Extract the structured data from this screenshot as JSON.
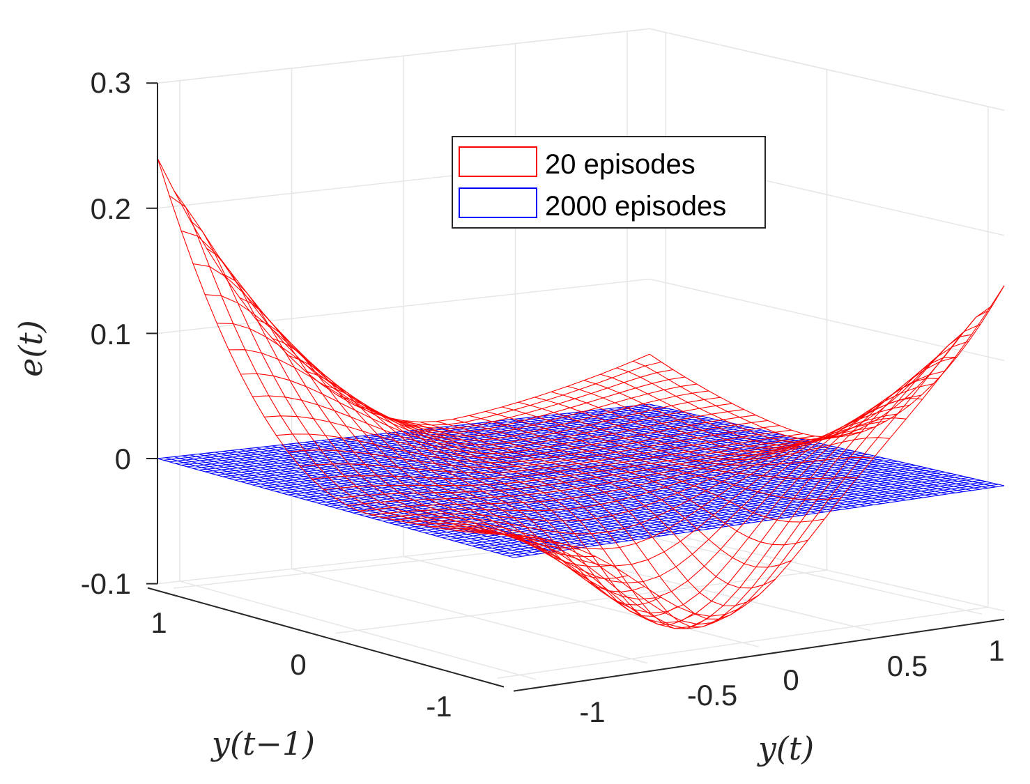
{
  "chart_data": {
    "type": "surface",
    "title": "",
    "xlabel": "y(t)",
    "ylabel": "y(t−1)",
    "zlabel": "e(t)",
    "xlim": [
      -1.1,
      1.1
    ],
    "ylim": [
      -1.1,
      1.1
    ],
    "zlim": [
      -0.1,
      0.3
    ],
    "x_ticks": [
      "-1",
      "-0.5",
      "0",
      "0.5",
      "1"
    ],
    "y_ticks": [
      "1",
      "0",
      "-1"
    ],
    "z_ticks": [
      "0.3",
      "0.2",
      "0.1",
      "0",
      "-0.1"
    ],
    "grid": true,
    "legend_position": "top-center",
    "series": [
      {
        "name": "20 episodes",
        "color": "#ff0000",
        "style": "mesh",
        "grid_lines": 31,
        "description": "curved error surface, large at corners, dips near y(t)=0,y(t-1)=-1",
        "corner_values": {
          "x-1.1_y1.1": 0.24,
          "x1.1_y-1.1": 0.16,
          "x-1.1_y-1.1": 0.02,
          "x1.1_y1.1": 0.04
        },
        "min_value": -0.09
      },
      {
        "name": "2000 episodes",
        "color": "#0000ff",
        "style": "mesh",
        "grid_lines": 61,
        "description": "nearly flat surface close to zero",
        "corner_values": {
          "x-1.1_y1.1": 0.0,
          "x1.1_y-1.1": 0.0,
          "x-1.1_y-1.1": 0.0,
          "x1.1_y1.1": 0.0
        },
        "min_value": 0.0
      }
    ]
  }
}
